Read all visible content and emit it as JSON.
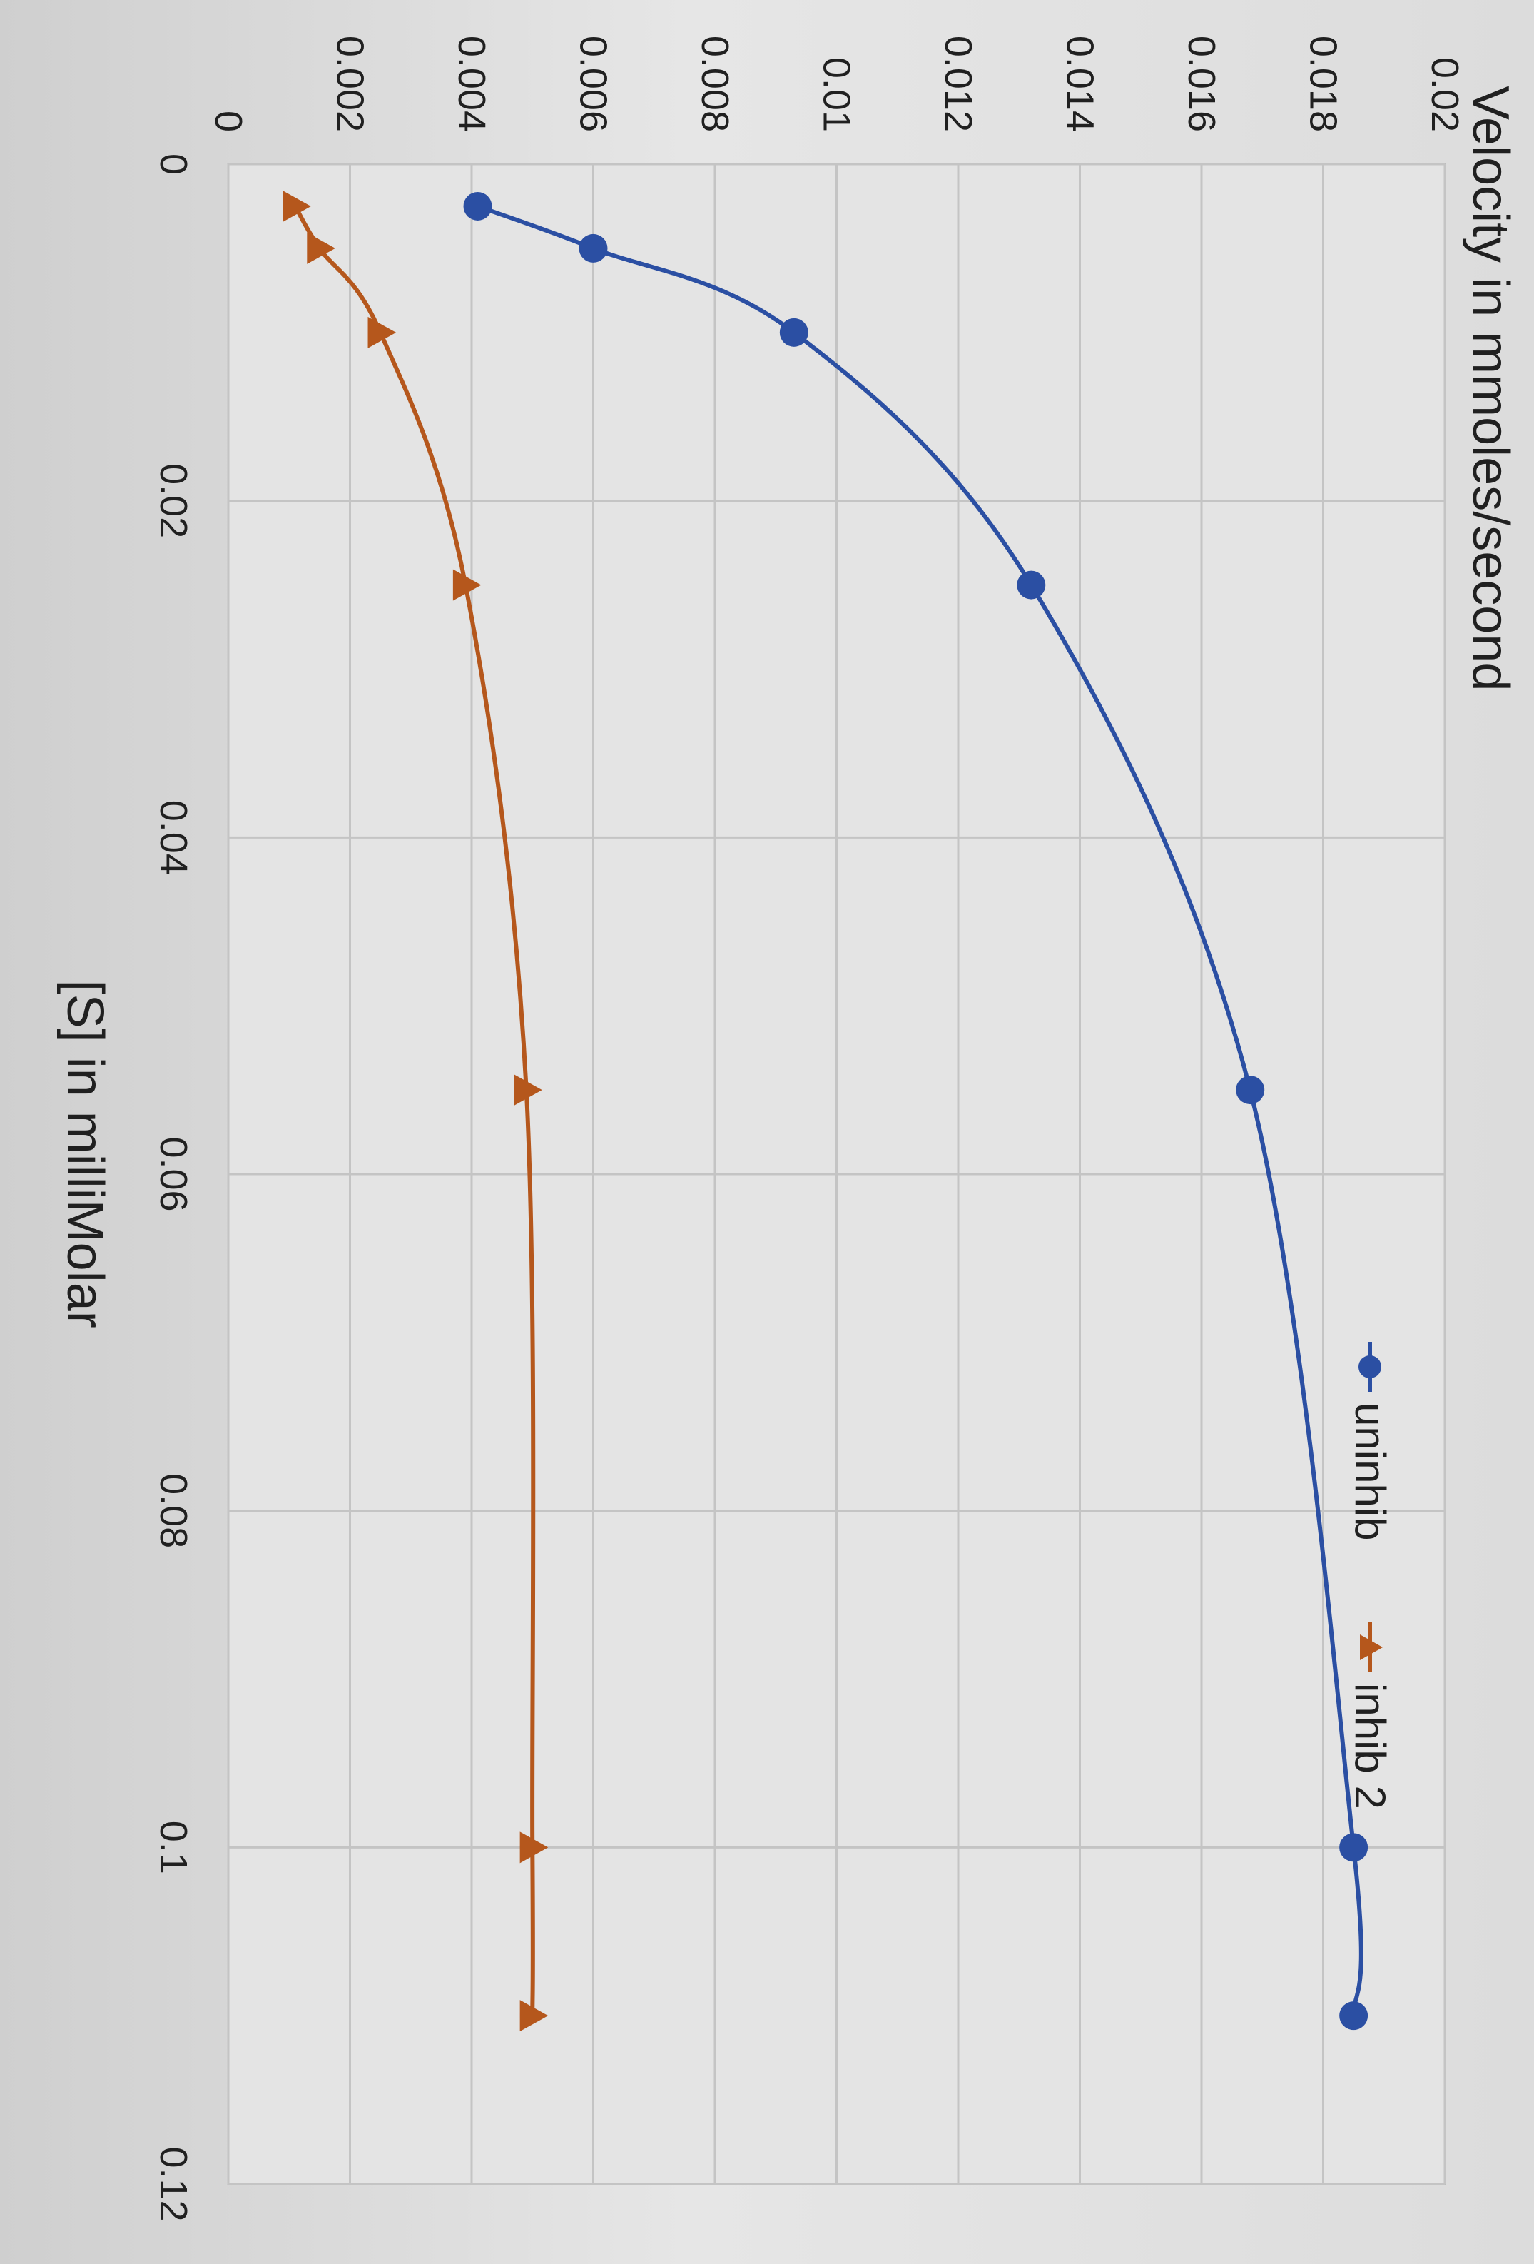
{
  "chart_data": {
    "type": "scatter",
    "title": "",
    "xlabel": "[S] in milliMolar",
    "ylabel": "Velocity in mmoles/second",
    "xlim": [
      0,
      0.12
    ],
    "ylim": [
      0,
      0.02
    ],
    "x_ticks": [
      "0",
      "0.02",
      "0.04",
      "0.06",
      "0.08",
      "0.1",
      "0.12"
    ],
    "y_ticks": [
      "0",
      "0.002",
      "0.004",
      "0.006",
      "0.008",
      "0.01",
      "0.012",
      "0.014",
      "0.016",
      "0.018",
      "0.02"
    ],
    "grid": true,
    "legend_position": "top-right",
    "smooth_lines": true,
    "series": [
      {
        "name": "uninhib",
        "color": "#2b4fa3",
        "marker": "circle",
        "x": [
          0.0025,
          0.005,
          0.01,
          0.025,
          0.055,
          0.1,
          0.11
        ],
        "y": [
          0.0041,
          0.006,
          0.0093,
          0.0132,
          0.0168,
          0.0185,
          0.0185
        ]
      },
      {
        "name": "inhib 2",
        "color": "#b5571c",
        "marker": "triangle",
        "x": [
          0.0025,
          0.005,
          0.01,
          0.025,
          0.055,
          0.1,
          0.11
        ],
        "y": [
          0.0011,
          0.0015,
          0.0025,
          0.0039,
          0.0049,
          0.005,
          0.005
        ]
      }
    ]
  }
}
